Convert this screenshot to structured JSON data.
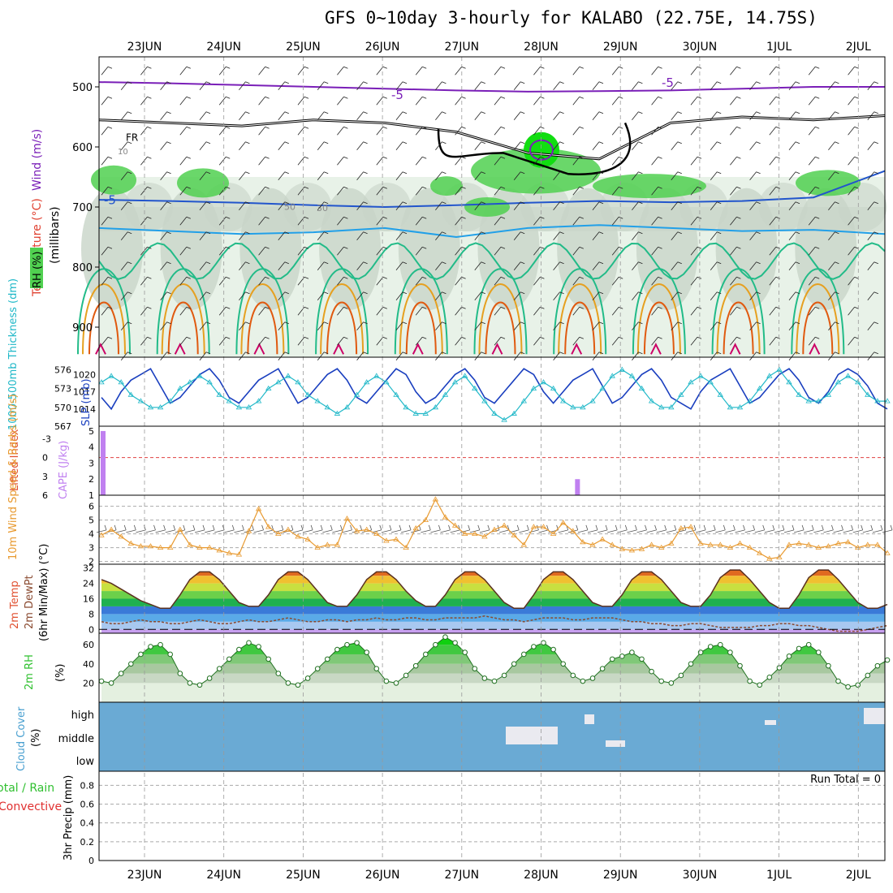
{
  "title": "GFS 0~10day 3-hourly for KALABO (22.75E, 14.75S)",
  "dates": [
    "23JUN",
    "24JUN",
    "25JUN",
    "26JUN",
    "27JUN",
    "28JUN",
    "29JUN",
    "30JUN",
    "1JUL",
    "2JUL"
  ],
  "colors": {
    "temp_neg5": "#7a1fb8",
    "temp_fr": "#000000",
    "temp_blue": "#2255cc",
    "temp_lightblue": "#22a0e8",
    "temp_green": "#22bb88",
    "temp_orange": "#e6a020",
    "temp_red": "#e05a10",
    "temp_magenta": "#cc0066",
    "rh_low": "#e8f2e8",
    "rh_mid": "#c8d4c8",
    "rh_high": "#a0b4a0",
    "rh_sat": "#50d050",
    "slp": "#1a3fbf",
    "thickness": "#20b8c8",
    "cape": "#c080f0",
    "wind10": "#e89a30",
    "cloud": "#6aaad4",
    "rh2m": "#30c030"
  },
  "chart_data": [
    {
      "id": "upper_air",
      "type": "heatmap",
      "ylabel_parts": [
        "Wind (m/s)",
        "Temperature (°C)",
        "(millibars)",
        "RH (%)"
      ],
      "yticks": [
        500,
        600,
        700,
        800,
        900
      ],
      "ylim": [
        950,
        450
      ],
      "contour_labels": [
        "-5",
        "FR",
        "10",
        "30",
        "50",
        "-5"
      ],
      "temperature_lines": [
        {
          "name": "-5 upper",
          "color": "#7a1fb8",
          "pressure": [
            492,
            494,
            497,
            500,
            503,
            506,
            508,
            507,
            506,
            503,
            500,
            500
          ]
        },
        {
          "name": "FR",
          "color": "#000000",
          "pressure": [
            555,
            560,
            565,
            555,
            560,
            575,
            610,
            620,
            560,
            550,
            555,
            548
          ]
        },
        {
          "name": "-5",
          "color": "#2255cc",
          "pressure": [
            688,
            690,
            693,
            697,
            700,
            697,
            693,
            690,
            692,
            690,
            684,
            640
          ]
        },
        {
          "name": "lightblue",
          "color": "#22a0e8",
          "pressure": [
            735,
            740,
            745,
            742,
            735,
            750,
            735,
            730,
            735,
            740,
            738,
            745
          ]
        }
      ]
    },
    {
      "id": "slp_thickness",
      "type": "line",
      "ylabel_left": "1000-500mb Thickness (dm)",
      "ylabel_right": "SLP (mb)",
      "yticks_left": [
        567,
        570,
        573,
        576
      ],
      "yticks_right": [
        1014,
        1017,
        1020
      ],
      "series": [
        {
          "name": "SLP (mb)",
          "color": "#1a3fbf",
          "values": [
            1016,
            1014,
            1017,
            1019,
            1020,
            1021,
            1018,
            1015,
            1016,
            1018,
            1020,
            1021,
            1019,
            1016,
            1015,
            1017,
            1019,
            1020,
            1021,
            1018,
            1015,
            1016,
            1018,
            1020,
            1021,
            1019,
            1016,
            1015,
            1017,
            1019,
            1021,
            1020,
            1017,
            1015,
            1016,
            1018,
            1020,
            1021,
            1019,
            1016,
            1015,
            1017,
            1019,
            1021,
            1020,
            1017,
            1015,
            1017,
            1019,
            1020,
            1021,
            1018,
            1015,
            1016,
            1018,
            1020,
            1021,
            1019,
            1016,
            1015,
            1014,
            1017,
            1019,
            1020,
            1021,
            1018,
            1015,
            1016,
            1018,
            1020,
            1021,
            1019,
            1016,
            1015,
            1017,
            1020,
            1021,
            1020,
            1018,
            1015,
            1014
          ]
        },
        {
          "name": "Thickness (dm)",
          "color": "#20b8c8",
          "values": [
            574,
            575,
            574,
            572,
            571,
            570,
            570,
            571,
            573,
            574,
            575,
            574,
            572,
            571,
            570,
            570,
            571,
            573,
            574,
            575,
            574,
            572,
            571,
            570,
            569,
            570,
            572,
            574,
            575,
            574,
            572,
            570,
            569,
            569,
            570,
            572,
            574,
            575,
            573,
            571,
            569,
            568,
            569,
            571,
            573,
            574,
            573,
            571,
            570,
            570,
            571,
            573,
            575,
            576,
            575,
            573,
            571,
            570,
            570,
            572,
            574,
            575,
            574,
            572,
            570,
            570,
            571,
            573,
            575,
            576,
            574,
            572,
            571,
            571,
            572,
            574,
            575,
            574,
            572,
            571,
            571
          ]
        }
      ]
    },
    {
      "id": "cape_li",
      "type": "bar",
      "ylabel_left": "Lifted Index",
      "ylabel_right": "CAPE (J/kg)",
      "yticks_left": [
        "-3",
        "0",
        "3",
        "6"
      ],
      "yticks_right": [
        "1",
        "2",
        "3",
        "4",
        "5"
      ],
      "cape_bars": [
        {
          "day_offset": 0.0,
          "value": 5
        },
        {
          "day_offset": 5.5,
          "value": 2
        }
      ],
      "zero_line": 0
    },
    {
      "id": "wind10m",
      "type": "line",
      "ylabel": "10m Wind Speed & Barbs (m/s)",
      "yticks": [
        2,
        3,
        4,
        5,
        6
      ],
      "ylim": [
        1.8,
        6.8
      ],
      "series": [
        {
          "name": "10m Wind Speed",
          "color": "#e89a30",
          "values": [
            3.9,
            4.3,
            3.8,
            3.3,
            3.1,
            3.1,
            3.0,
            3.0,
            4.3,
            3.2,
            3.0,
            3.0,
            2.8,
            2.6,
            2.5,
            4.2,
            5.8,
            4.5,
            4.0,
            4.3,
            3.8,
            3.6,
            3.0,
            3.2,
            3.2,
            5.1,
            4.2,
            4.3,
            4.0,
            3.5,
            3.6,
            3.0,
            4.4,
            5.0,
            6.5,
            5.2,
            4.6,
            4.0,
            4.0,
            3.8,
            4.3,
            4.6,
            3.9,
            3.2,
            4.5,
            4.5,
            4.0,
            4.8,
            4.2,
            3.4,
            3.2,
            3.6,
            3.2,
            2.9,
            2.8,
            2.9,
            3.2,
            3.0,
            3.3,
            4.4,
            4.5,
            3.3,
            3.2,
            3.2,
            3.0,
            3.3,
            3.0,
            2.6,
            2.2,
            2.3,
            3.2,
            3.3,
            3.2,
            3.0,
            3.1,
            3.3,
            3.4,
            3.0,
            3.2,
            3.2,
            2.6
          ]
        }
      ]
    },
    {
      "id": "temp2m",
      "type": "area",
      "ylabel": "2m Temp 2m DewPt (6hr Min/Max) (°C)",
      "yticks": [
        0,
        8,
        16,
        24,
        32
      ],
      "ylim": [
        -2,
        34
      ],
      "series": [
        {
          "name": "2m Temp",
          "values": [
            26,
            24,
            21,
            18,
            15,
            13,
            11,
            11,
            18,
            26,
            30,
            30,
            26,
            20,
            14,
            12,
            12,
            18,
            26,
            30,
            30,
            26,
            20,
            14,
            12,
            12,
            18,
            26,
            30,
            30,
            26,
            20,
            15,
            12,
            12,
            18,
            26,
            30,
            30,
            26,
            20,
            14,
            11,
            11,
            18,
            26,
            30,
            30,
            26,
            20,
            14,
            12,
            12,
            18,
            26,
            30,
            30,
            26,
            20,
            14,
            12,
            12,
            18,
            27,
            31,
            31,
            26,
            20,
            14,
            11,
            11,
            18,
            27,
            31,
            31,
            26,
            20,
            14,
            11,
            11,
            13
          ]
        },
        {
          "name": "2m DewPt",
          "values": [
            4,
            3,
            3,
            4,
            5,
            4,
            4,
            3,
            3,
            4,
            5,
            4,
            3,
            3,
            4,
            5,
            4,
            4,
            5,
            6,
            5,
            4,
            4,
            5,
            5,
            4,
            5,
            5,
            6,
            5,
            5,
            6,
            6,
            5,
            5,
            6,
            6,
            6,
            6,
            7,
            6,
            5,
            5,
            4,
            5,
            6,
            6,
            6,
            5,
            5,
            6,
            6,
            6,
            5,
            4,
            4,
            3,
            3,
            2,
            2,
            3,
            3,
            2,
            1,
            1,
            1,
            1,
            2,
            2,
            3,
            3,
            2,
            2,
            1,
            0,
            -1,
            -1,
            -1,
            0,
            1,
            2
          ]
        }
      ]
    },
    {
      "id": "rh2m",
      "type": "area",
      "ylabel": "2m RH (%)",
      "yticks": [
        20,
        40,
        60
      ],
      "ylim": [
        0,
        72
      ],
      "series": [
        {
          "name": "2m RH",
          "values": [
            22,
            20,
            30,
            40,
            50,
            58,
            60,
            50,
            30,
            20,
            18,
            25,
            35,
            45,
            55,
            62,
            58,
            45,
            30,
            20,
            18,
            25,
            35,
            45,
            55,
            60,
            62,
            52,
            35,
            22,
            20,
            28,
            38,
            50,
            60,
            68,
            62,
            52,
            35,
            25,
            22,
            28,
            40,
            50,
            58,
            62,
            55,
            40,
            28,
            22,
            25,
            35,
            45,
            48,
            52,
            45,
            32,
            22,
            20,
            28,
            40,
            52,
            58,
            60,
            52,
            38,
            22,
            18,
            26,
            36,
            48,
            56,
            60,
            52,
            38,
            22,
            16,
            18,
            28,
            38,
            44
          ]
        }
      ]
    },
    {
      "id": "cloud",
      "type": "heatmap",
      "ylabel": "Cloud Cover (%)",
      "yticks": [
        "high",
        "middle",
        "low"
      ]
    },
    {
      "id": "precip",
      "type": "bar",
      "ylabel_parts": [
        "Total / Rain",
        "Convective",
        "3hr Precip (mm)"
      ],
      "yticks": [
        0,
        0.2,
        0.4,
        0.6,
        0.8
      ],
      "ylim": [
        0,
        0.95
      ],
      "run_total": "Run Total = 0"
    }
  ]
}
